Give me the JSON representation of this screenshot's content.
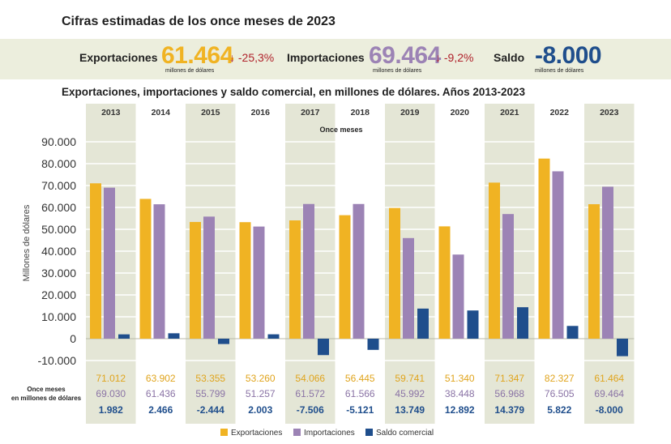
{
  "title": "Cifras estimadas de los once meses de 2023",
  "summary": {
    "exports": {
      "label": "Exportaciones",
      "value": "61.464",
      "change": "↓ -25,3%",
      "unit": "millones de dólares",
      "color": "#f0b323"
    },
    "imports": {
      "label": "Importaciones",
      "value": "69.464",
      "change": "↓ -9,2%",
      "unit": "millones de dólares",
      "color": "#9c83b5"
    },
    "balance": {
      "label": "Saldo",
      "value": "-8.000",
      "unit": "millones de dólares",
      "color": "#1f4e8c"
    }
  },
  "chart_data": {
    "type": "bar",
    "title": "Exportaciones, importaciones y saldo comercial, en millones de dólares. Años 2013-2023",
    "subtitle": "Once meses",
    "ylabel": "Millones de dólares",
    "xlabel": "",
    "ylim": [
      -10000,
      90000
    ],
    "yticks": [
      "90.000",
      "80.000",
      "70.000",
      "60.000",
      "50.000",
      "40.000",
      "30.000",
      "20.000",
      "10.000",
      "0",
      "-10.000"
    ],
    "categories": [
      "2013",
      "2014",
      "2015",
      "2016",
      "2017",
      "2018",
      "2019",
      "2020",
      "2021",
      "2022",
      "2023"
    ],
    "series": [
      {
        "name": "Exportaciones",
        "color": "#f0b323",
        "label_color": "#e0a41c",
        "values": [
          71012,
          63902,
          53355,
          53260,
          54066,
          56445,
          59741,
          51340,
          71347,
          82327,
          61464
        ],
        "labels": [
          "71.012",
          "63.902",
          "53.355",
          "53.260",
          "54.066",
          "56.445",
          "59.741",
          "51.340",
          "71.347",
          "82.327",
          "61.464"
        ]
      },
      {
        "name": "Importaciones",
        "color": "#9c83b5",
        "label_color": "#8a73a5",
        "values": [
          69030,
          61436,
          55799,
          51257,
          61572,
          61566,
          45992,
          38448,
          56968,
          76505,
          69464
        ],
        "labels": [
          "69.030",
          "61.436",
          "55.799",
          "51.257",
          "61.572",
          "61.566",
          "45.992",
          "38.448",
          "56.968",
          "76.505",
          "69.464"
        ]
      },
      {
        "name": "Saldo comercial",
        "color": "#1f4e8c",
        "label_color": "#1f4e8c",
        "values": [
          1982,
          2466,
          -2444,
          2003,
          -7506,
          -5121,
          13749,
          12892,
          14379,
          5822,
          -8000
        ],
        "labels": [
          "1.982",
          "2.466",
          "-2.444",
          "2.003",
          "-7.506",
          "-5.121",
          "13.749",
          "12.892",
          "14.379",
          "5.822",
          "-8.000"
        ]
      }
    ],
    "table_label": [
      "Once meses",
      "en millones de dólares"
    ],
    "legend": "bottom"
  },
  "colors": {
    "band": "#e4e6d6",
    "summary_bg": "#eceedd",
    "grid": "#ffffff",
    "axis_text": "#333333"
  }
}
